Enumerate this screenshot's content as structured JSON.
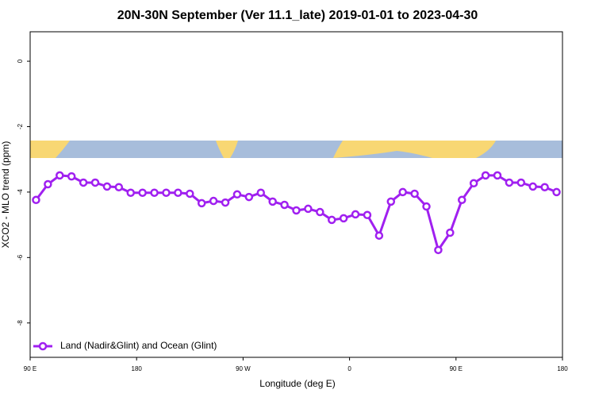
{
  "chart_data": {
    "type": "line",
    "title": "20N-30N September (Ver 11.1_late)   2019-01-01 to 2023-04-30",
    "x_label": "Longitude (deg E)",
    "y_label": "XCO2 - MLO trend (ppm)",
    "x": [
      95,
      105,
      115,
      125,
      135,
      145,
      155,
      165,
      175,
      185,
      195,
      205,
      215,
      225,
      235,
      245,
      255,
      265,
      275,
      285,
      295,
      305,
      315,
      325,
      335,
      345,
      355,
      365,
      375,
      385,
      395,
      405,
      415,
      425,
      435,
      445,
      455,
      465,
      475,
      485,
      495,
      505,
      515,
      525,
      535
    ],
    "series": [
      {
        "name": "Land (Nadir&Glint) and Ocean (Glint)",
        "color": "#a020f0",
        "values": [
          -4.24,
          -3.76,
          -3.49,
          -3.52,
          -3.71,
          -3.71,
          -3.83,
          -3.85,
          -4.02,
          -4.02,
          -4.02,
          -4.02,
          -4.02,
          -4.05,
          -4.34,
          -4.27,
          -4.32,
          -4.07,
          -4.15,
          -4.02,
          -4.29,
          -4.39,
          -4.56,
          -4.51,
          -4.61,
          -4.85,
          -4.8,
          -4.68,
          -4.7,
          -5.33,
          -4.29,
          -4.0,
          -4.05,
          -4.44,
          -5.77,
          -5.24,
          -4.24,
          -3.73,
          -3.49,
          -3.49,
          -3.71,
          -3.71,
          -3.83,
          -3.85,
          -4.0
        ]
      }
    ],
    "xlim": [
      90,
      540
    ],
    "xticks": [
      {
        "value": 90,
        "label": "90 E"
      },
      {
        "value": 180,
        "label": "180"
      },
      {
        "value": 270,
        "label": "90 W"
      },
      {
        "value": 360,
        "label": "0"
      },
      {
        "value": 450,
        "label": "90 E"
      },
      {
        "value": 540,
        "label": "180"
      }
    ],
    "ylim": [
      -9.05,
      0.9
    ],
    "yticks": [
      0,
      -2,
      -4,
      -6,
      -8
    ],
    "legend": "bottom-left"
  }
}
